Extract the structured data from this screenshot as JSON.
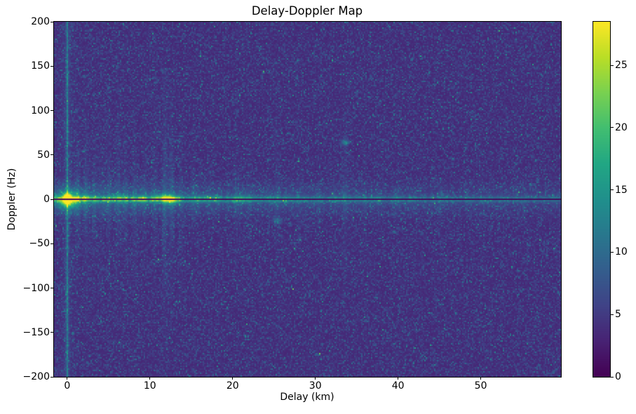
{
  "figure": {
    "title": "Delay-Doppler Map"
  },
  "chart_data": {
    "type": "heatmap",
    "title": "Delay-Doppler Map",
    "xlabel": "Delay (km)",
    "ylabel": "Doppler (Hz)",
    "xlim": [
      -1.6,
      59.7
    ],
    "ylim": [
      -200,
      200
    ],
    "x_ticks": [
      0,
      10,
      20,
      30,
      40,
      50
    ],
    "y_ticks": [
      200,
      150,
      100,
      50,
      0,
      -50,
      -100,
      -150,
      -200
    ],
    "grid": false,
    "colormap": "viridis",
    "vmin": 0,
    "vmax": 28.5,
    "colorbar": {
      "ticks": [
        0,
        5,
        10,
        15,
        20,
        25
      ],
      "orientation": "vertical"
    },
    "content": {
      "description": "Noisy viridis delay-Doppler surface: dark purple-blue noise background (~4-6), a bright horizontal clutter ridge along 0 Hz spanning all delays that fades with delay, a thin dark notch line exactly at 0 Hz, a full-height teal stripe at 0 km delay, a saturated yellow peak (~28.5) at 0 km / ~0 Hz, a bright green cluster near 12 km, faint vertical sidelobe streaks mostly between 0-16 km, and isolated specks near (33.6 km, +64 Hz) and (25.4 km, -24 Hz).",
      "background": {
        "base": 3.2,
        "noise_scale": 1.5,
        "speck_prob": 0.004,
        "speck_amp": 5
      },
      "zero_doppler_band": {
        "amp_base": 4.5,
        "amp_decay": 10.5,
        "decay_km": 25,
        "core_sigma_hz": 2.2,
        "wing_frac": 0.32,
        "wing_sigma_hz": 11,
        "neg_delay_factor": 0.75
      },
      "zero_doppler_notch": {
        "halfwidth_hz": 0.85,
        "value": 0.5
      },
      "zero_delay_stripe": {
        "amp": 7.0,
        "decay_km": 0.1,
        "glow_amp": 1.5,
        "glow_decay_km": 0.5
      },
      "sidelobe_stripes": [
        [
          1.3,
          2.2,
          50
        ],
        [
          2.3,
          2.8,
          60
        ],
        [
          3.2,
          2.2,
          45
        ],
        [
          4.1,
          1.8,
          40
        ],
        [
          5.0,
          2.0,
          50
        ],
        [
          6.1,
          2.4,
          55
        ],
        [
          7.0,
          1.8,
          40
        ],
        [
          8.2,
          2.2,
          50
        ],
        [
          9.4,
          1.6,
          35
        ],
        [
          10.6,
          2.0,
          45
        ],
        [
          11.8,
          3.2,
          70
        ],
        [
          12.6,
          2.6,
          55
        ],
        [
          13.8,
          1.8,
          40
        ],
        [
          15.2,
          1.5,
          35
        ],
        [
          17.0,
          1.2,
          30
        ],
        [
          20.5,
          1.4,
          40
        ],
        [
          22.0,
          1.1,
          30
        ],
        [
          25.4,
          1.6,
          45
        ],
        [
          28.0,
          1.0,
          25
        ],
        [
          30.5,
          1.0,
          30
        ],
        [
          33.6,
          1.5,
          60
        ],
        [
          36.0,
          0.9,
          25
        ],
        [
          40.0,
          0.8,
          25
        ],
        [
          45.0,
          0.7,
          20
        ],
        [
          50.0,
          0.7,
          20
        ],
        [
          55.0,
          0.6,
          20
        ]
      ],
      "peaks": [
        {
          "delay": 0.0,
          "doppler": 2,
          "amp": 26,
          "sx": 0.3,
          "sy": 3
        },
        {
          "delay": 0.0,
          "doppler": 0,
          "amp": 8,
          "sx": 1.2,
          "sy": 8
        },
        {
          "delay": 0.0,
          "doppler": -4,
          "amp": 10,
          "sx": 0.5,
          "sy": 3
        },
        {
          "delay": 11.8,
          "doppler": 1.5,
          "amp": 10,
          "sx": 1.1,
          "sy": 3.5
        },
        {
          "delay": 12.6,
          "doppler": -2,
          "amp": 6,
          "sx": 0.5,
          "sy": 2.5
        },
        {
          "delay": 2.3,
          "doppler": 2,
          "amp": 5,
          "sx": 0.6,
          "sy": 3
        },
        {
          "delay": 6.1,
          "doppler": 2,
          "amp": 4.5,
          "sx": 0.7,
          "sy": 3
        },
        {
          "delay": 8.9,
          "doppler": 1,
          "amp": 4,
          "sx": 0.6,
          "sy": 3
        },
        {
          "delay": 16.8,
          "doppler": 1,
          "amp": 4,
          "sx": 0.8,
          "sy": 3
        },
        {
          "delay": 21.0,
          "doppler": 1,
          "amp": 3.5,
          "sx": 0.8,
          "sy": 3
        },
        {
          "delay": 33.6,
          "doppler": 64,
          "amp": 7.5,
          "sx": 0.35,
          "sy": 2.2
        },
        {
          "delay": 25.4,
          "doppler": -24,
          "amp": 5.5,
          "sx": 0.4,
          "sy": 2.2
        }
      ]
    }
  }
}
